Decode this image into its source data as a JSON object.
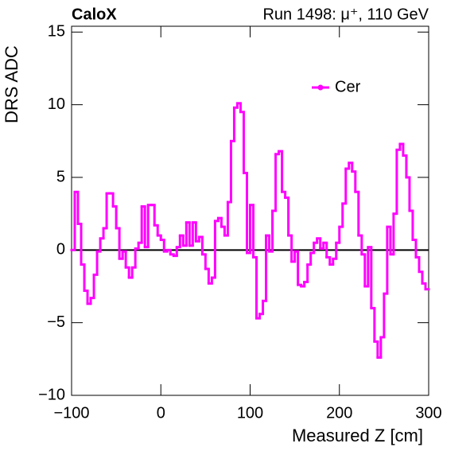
{
  "chart_data": {
    "type": "histogram",
    "title": "CaloX",
    "subtitle": "Run 1498:   μ⁺, 110 GeV",
    "x_label": "Measured Z [cm]",
    "y_label": "DRS ADC",
    "series": [
      {
        "name": "Cer",
        "color": "#ff00ff"
      }
    ],
    "bins": [
      -100,
      -96.43,
      -92.86,
      -89.29,
      -85.71,
      -82.14,
      -78.57,
      -75,
      -71.43,
      -67.86,
      -64.29,
      -60.71,
      -57.14,
      -53.57,
      -50,
      -46.43,
      -42.86,
      -39.29,
      -35.71,
      -32.14,
      -28.57,
      -25,
      -21.43,
      -17.86,
      -14.29,
      -10.71,
      -7.14,
      -3.57,
      0,
      3.57,
      7.14,
      10.71,
      14.29,
      17.86,
      21.43,
      25,
      28.57,
      32.14,
      35.71,
      39.29,
      42.86,
      46.43,
      50,
      53.57,
      57.14,
      60.71,
      64.29,
      67.86,
      71.43,
      75,
      78.57,
      82.14,
      85.71,
      89.29,
      92.86,
      96.43,
      100,
      103.57,
      107.14,
      110.71,
      114.29,
      117.86,
      121.43,
      125,
      128.57,
      132.14,
      135.71,
      139.29,
      142.86,
      146.43,
      150,
      153.57,
      157.14,
      160.71,
      164.29,
      167.86,
      171.43,
      175,
      178.57,
      182.14,
      185.71,
      189.29,
      192.86,
      196.43,
      200,
      203.57,
      207.14,
      210.71,
      214.29,
      217.86,
      221.43,
      225,
      228.57,
      232.14,
      235.71,
      239.29,
      242.86,
      246.43,
      250,
      253.57,
      257.14,
      260.71,
      264.29,
      267.86,
      271.43,
      275,
      278.57,
      282.14,
      285.71,
      289.29,
      292.86,
      296.43,
      300
    ],
    "values": [
      0,
      4.0,
      1.8,
      -1.0,
      -2.8,
      -3.7,
      -3.3,
      -1.7,
      -0.1,
      0.8,
      1.5,
      3.9,
      3.9,
      3.0,
      1.5,
      -0.6,
      -0.1,
      -1.2,
      -1.9,
      -1.2,
      0.1,
      0.5,
      3.0,
      0.2,
      3.1,
      3.1,
      1.7,
      1.0,
      0.7,
      -0.1,
      0.0,
      -0.3,
      -0.4,
      0.2,
      1.0,
      0.3,
      1.9,
      0.3,
      1.9,
      0.6,
      0.9,
      -0.3,
      -1.3,
      -2.3,
      -1.9,
      2.0,
      2.2,
      1.6,
      1.0,
      3.3,
      7.5,
      9.8,
      10.1,
      9.5,
      5.3,
      -0.2,
      3.1,
      -0.5,
      -4.7,
      -4.4,
      -3.5,
      1.0,
      -0.1,
      2.7,
      6.6,
      6.8,
      4.0,
      3.6,
      1.0,
      -0.8,
      -0.1,
      -2.4,
      -2.5,
      -2.2,
      -1.0,
      -0.2,
      0.5,
      0.8,
      0.1,
      0.5,
      -0.5,
      -1.0,
      -0.6,
      0.5,
      1.6,
      3.2,
      5.6,
      6.0,
      5.4,
      4.0,
      1.0,
      -0.3,
      -2.5,
      0.2,
      -4.0,
      -6.3,
      -7.4,
      -6.0,
      -3.0,
      1.6,
      -0.3,
      2.5,
      6.9,
      7.3,
      6.5,
      5.0,
      2.7,
      0.7,
      -0.5,
      -1.5,
      -2.3,
      -2.7
    ],
    "xlim": [
      -100,
      300
    ],
    "ylim": [
      -10,
      15.4
    ],
    "xticks": [
      {
        "value": -100,
        "label": "−100"
      },
      0,
      100,
      200,
      300
    ],
    "yticks": [
      {
        "value": -10,
        "label": "−10"
      },
      {
        "value": -5,
        "label": "−5"
      },
      0,
      5,
      10,
      15
    ],
    "legend": "upper right"
  }
}
